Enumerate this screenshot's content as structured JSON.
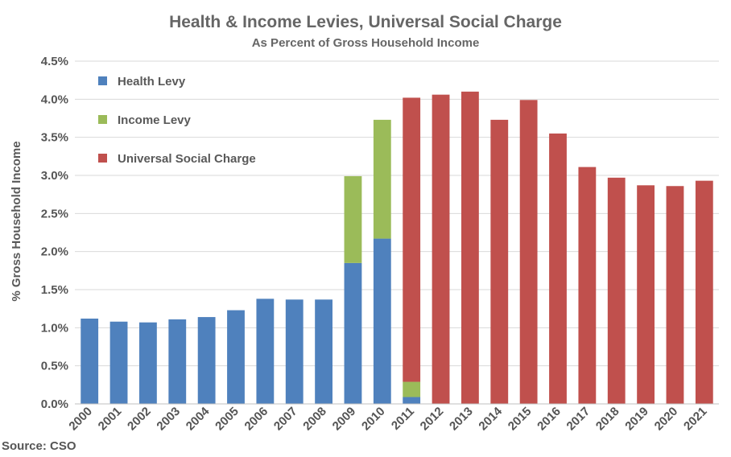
{
  "chart_data": {
    "type": "bar",
    "stacked": true,
    "title": "Health & Income Levies, Universal Social Charge",
    "subtitle": "As Percent of Gross Household Income",
    "ylabel": "% Gross Household Income",
    "xlabel": "",
    "ylim": [
      0,
      4.5
    ],
    "ytick_step": 0.5,
    "ytick_labels": [
      "0.0%",
      "0.5%",
      "1.0%",
      "1.5%",
      "2.0%",
      "2.5%",
      "3.0%",
      "3.5%",
      "4.0%",
      "4.5%"
    ],
    "grid": true,
    "legend_position": "top-left",
    "categories": [
      "2000",
      "2001",
      "2002",
      "2003",
      "2004",
      "2005",
      "2006",
      "2007",
      "2008",
      "2009",
      "2010",
      "2011",
      "2012",
      "2013",
      "2014",
      "2015",
      "2016",
      "2017",
      "2018",
      "2019",
      "2020",
      "2021"
    ],
    "series": [
      {
        "name": "Health Levy",
        "color": "#4f81bd",
        "values": [
          1.12,
          1.08,
          1.07,
          1.11,
          1.14,
          1.23,
          1.38,
          1.37,
          1.37,
          1.85,
          2.17,
          0.09,
          0,
          0,
          0,
          0,
          0,
          0,
          0,
          0,
          0,
          0
        ]
      },
      {
        "name": "Income Levy",
        "color": "#9bbb59",
        "values": [
          0,
          0,
          0,
          0,
          0,
          0,
          0,
          0,
          0,
          1.14,
          1.56,
          0.2,
          0,
          0,
          0,
          0,
          0,
          0,
          0,
          0,
          0,
          0
        ]
      },
      {
        "name": "Universal Social Charge",
        "color": "#c0504d",
        "values": [
          0,
          0,
          0,
          0,
          0,
          0,
          0,
          0,
          0,
          0,
          0,
          3.73,
          4.06,
          4.1,
          3.73,
          3.99,
          3.55,
          3.11,
          2.97,
          2.87,
          2.86,
          2.93
        ]
      }
    ],
    "source": "Source: CSO"
  }
}
